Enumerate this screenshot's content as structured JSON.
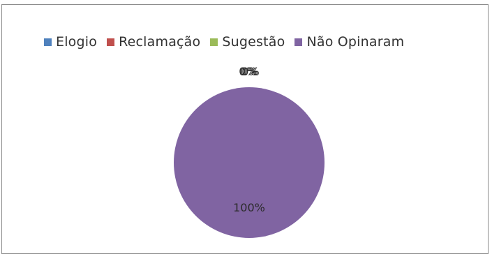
{
  "chart_data": {
    "type": "pie",
    "categories": [
      "Elogio",
      "Reclamação",
      "Sugestão",
      "Não Opinaram"
    ],
    "values": [
      0,
      0,
      0,
      100
    ],
    "data_labels": [
      "0%",
      "0%",
      "0%",
      "100%"
    ],
    "colors": [
      "#4f81bd",
      "#c0504d",
      "#9bbb59",
      "#8064a2"
    ],
    "legend_position": "top"
  }
}
